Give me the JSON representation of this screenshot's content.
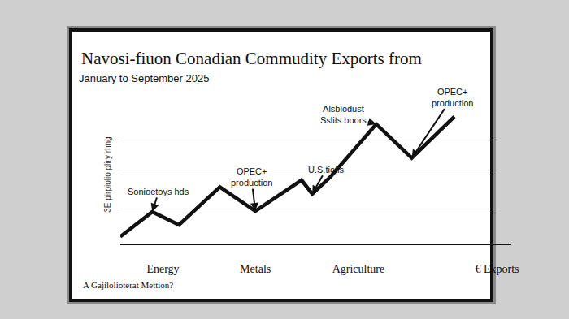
{
  "chart_data": {
    "type": "line",
    "title": "Navosi-fiuon Conadian Commudity Exports from",
    "subtitle": "January to September 2025",
    "y_label": "3E pirpiolio pliry rhng",
    "footnote": "A Gajilolioterat Mettion?",
    "x": [
      0,
      9,
      16.5,
      28,
      38,
      51,
      54,
      59,
      72,
      82,
      94
    ],
    "values": [
      5,
      23,
      13.5,
      41,
      23.5,
      46,
      36,
      48,
      86.5,
      62,
      92
    ],
    "color": "#111111",
    "xlim": [
      0,
      110
    ],
    "xticks": [
      {
        "value": 12,
        "label": "Energy"
      },
      {
        "value": 38,
        "label": "Metals"
      },
      {
        "value": 67,
        "label": "Agriculture"
      },
      {
        "value": 106,
        "label": "€ Exports"
      }
    ],
    "ylim": [
      0,
      100
    ],
    "yticks": [
      0,
      25,
      50,
      75,
      100
    ],
    "grid": true,
    "tick_labels": "x",
    "annotations": [
      {
        "text": "Sonioetoys hds",
        "x": 9,
        "y": 23
      },
      {
        "text": "OPEC+\nproduction",
        "x": 38,
        "y": 23.5
      },
      {
        "text": "U.S.tiofls",
        "x": 54,
        "y": 36
      },
      {
        "text": "Alsblodust\nSslits boors",
        "x": 72,
        "y": 86.5
      },
      {
        "text": "OPEC+\nproduction",
        "x": 82,
        "y": 62
      }
    ]
  }
}
